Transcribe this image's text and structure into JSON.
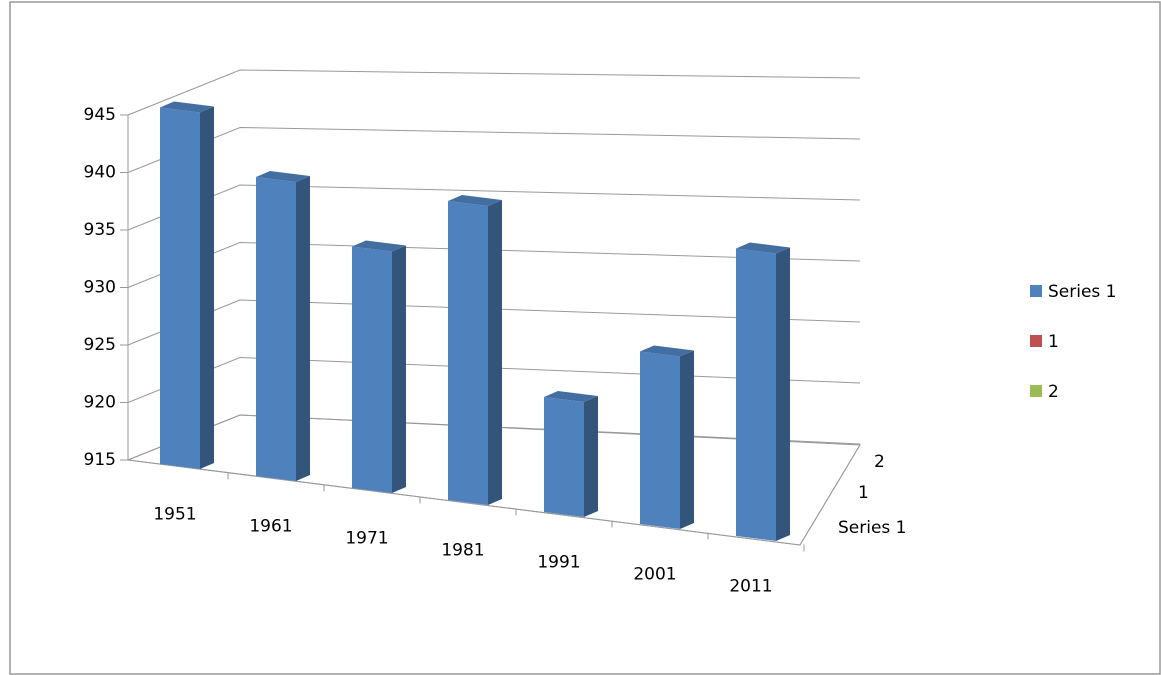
{
  "chart_data": {
    "type": "bar3d",
    "categories": [
      "1951",
      "1961",
      "1971",
      "1981",
      "1991",
      "2001",
      "2011"
    ],
    "series": [
      {
        "name": "Series 1",
        "color": "#4f81bd",
        "values": [
          946,
          941,
          936,
          941,
          925,
          930,
          940
        ]
      },
      {
        "name": "1",
        "color": "#c0504d",
        "values": [
          null,
          null,
          null,
          null,
          null,
          null,
          null
        ]
      },
      {
        "name": "2",
        "color": "#9bbb59",
        "values": [
          null,
          null,
          null,
          null,
          null,
          null,
          null
        ]
      }
    ],
    "ylim": [
      915,
      945
    ],
    "yticks": [
      915,
      920,
      925,
      930,
      935,
      940,
      945
    ],
    "grid": true,
    "legend": "right"
  }
}
